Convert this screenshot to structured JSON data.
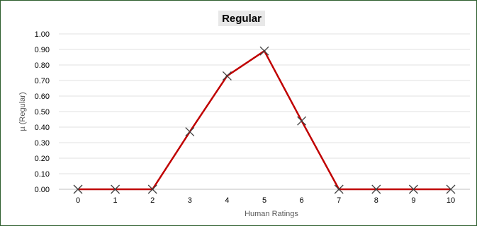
{
  "chart_data": {
    "type": "line",
    "title": "Regular",
    "xlabel": "Human Ratings",
    "ylabel": "µ (Regular)",
    "x": [
      0,
      1,
      2,
      3,
      4,
      5,
      6,
      7,
      8,
      9,
      10
    ],
    "xticks": [
      "0",
      "1",
      "2",
      "3",
      "4",
      "5",
      "6",
      "7",
      "8",
      "9",
      "10"
    ],
    "yticks": [
      "0.00",
      "0.10",
      "0.20",
      "0.30",
      "0.40",
      "0.50",
      "0.60",
      "0.70",
      "0.80",
      "0.90",
      "1.00"
    ],
    "ylim": [
      0,
      1
    ],
    "grid": true,
    "series": [
      {
        "values": [
          0,
          0,
          0,
          0.37,
          0.73,
          0.89,
          0.44,
          0,
          0,
          0,
          0
        ],
        "marker": "x"
      }
    ],
    "colors": {
      "line": "#c00000",
      "marker": "#404040",
      "grid": "#e0e0e0",
      "axis": "#bfbfbf"
    }
  }
}
